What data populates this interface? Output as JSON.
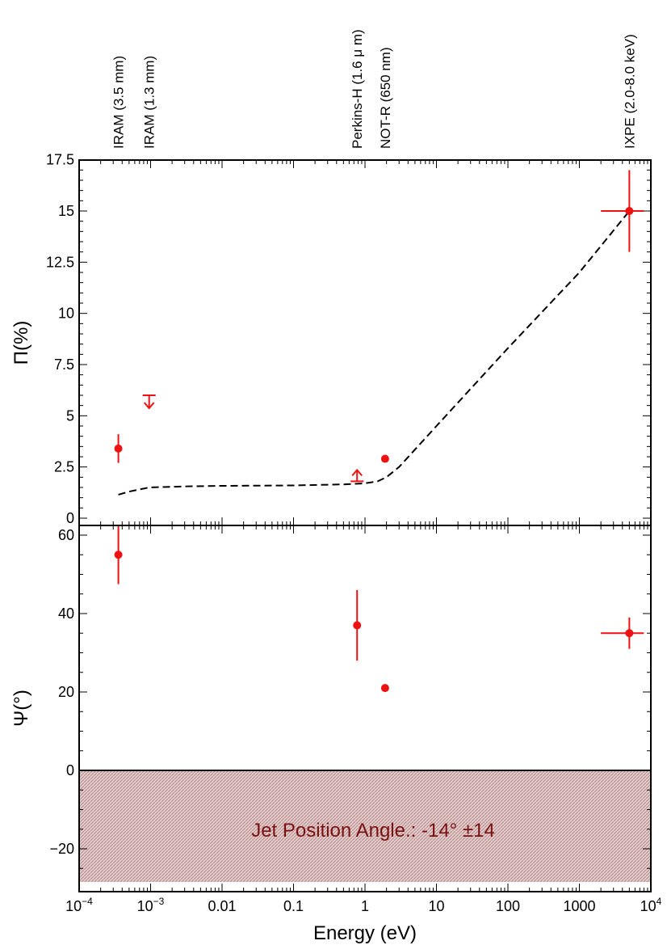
{
  "chart_data": {
    "type": "scatter",
    "xlabel": "Energy (eV)",
    "xscale": "log",
    "xlim": [
      0.0001,
      10000
    ],
    "x_ticks": [
      {
        "value": 0.0001,
        "base": "10",
        "exp": "−4"
      },
      {
        "value": 0.001,
        "base": "10",
        "exp": "−3"
      },
      {
        "value": 0.01,
        "label": "0.01"
      },
      {
        "value": 0.1,
        "label": "0.1"
      },
      {
        "value": 1,
        "label": "1"
      },
      {
        "value": 10,
        "label": "10"
      },
      {
        "value": 100,
        "label": "100"
      },
      {
        "value": 1000,
        "label": "1000"
      },
      {
        "value": 10000,
        "base": "10",
        "exp": "4"
      }
    ],
    "bands": [
      {
        "label": "IRAM (3.5 mm)",
        "x": 0.000354
      },
      {
        "label": "IRAM (1.3 mm)",
        "x": 0.000954
      },
      {
        "label": "Perkins-H (1.6 μ m)",
        "x": 0.775
      },
      {
        "label": "NOT-R (650 nm)",
        "x": 1.91
      },
      {
        "label": "IXPE (2.0-8.0 keV)",
        "x": 5000
      }
    ],
    "colors": {
      "data": "#ee1111",
      "model": "#000000",
      "band_fill": "#d9b8b8",
      "band_text": "#7a1010"
    },
    "panels": [
      {
        "ylabel": "Π(%)",
        "ylim": [
          0,
          17.5
        ],
        "y_ticks": [
          "0",
          "2.5",
          "5",
          "7.5",
          "10",
          "12.5",
          "15",
          "17.5"
        ],
        "points": [
          {
            "x": 0.000354,
            "y": 3.4,
            "yerr": 0.7
          },
          {
            "x": 1.91,
            "y": 2.9
          },
          {
            "x": 5000,
            "y": 15.0,
            "yerr": 2.0,
            "xlo": 2000,
            "xhi": 8000
          }
        ],
        "upper_limits": [
          {
            "x": 0.000954,
            "y": 6.0
          }
        ],
        "lower_limits": [
          {
            "x": 0.775,
            "y": 1.8
          }
        ],
        "model_line": {
          "style": "dashed",
          "x": [
            0.000354,
            0.0005,
            0.000954,
            0.003,
            0.01,
            0.1,
            0.5,
            1.0,
            1.5,
            2.0,
            3.0,
            10,
            100,
            1000,
            5000
          ],
          "y": [
            1.15,
            1.3,
            1.5,
            1.55,
            1.58,
            1.6,
            1.65,
            1.7,
            1.8,
            2.0,
            2.5,
            4.5,
            8.3,
            12.0,
            15.0
          ]
        }
      },
      {
        "ylabel": "Ψ(°)",
        "ylim": [
          -28,
          61
        ],
        "y_ticks": [
          "−20",
          "0",
          "20",
          "40",
          "60"
        ],
        "points": [
          {
            "x": 0.000354,
            "y": 55,
            "yerr": 7.5
          },
          {
            "x": 0.775,
            "y": 37,
            "yerr": 9
          },
          {
            "x": 1.91,
            "y": 21
          },
          {
            "x": 5000,
            "y": 35,
            "yerr": 4,
            "xlo": 2000,
            "xhi": 8000
          }
        ],
        "shaded_band": {
          "ymin": -28,
          "ymax": 0,
          "label": "Jet Position Angle.: -14° ±14"
        }
      }
    ]
  }
}
